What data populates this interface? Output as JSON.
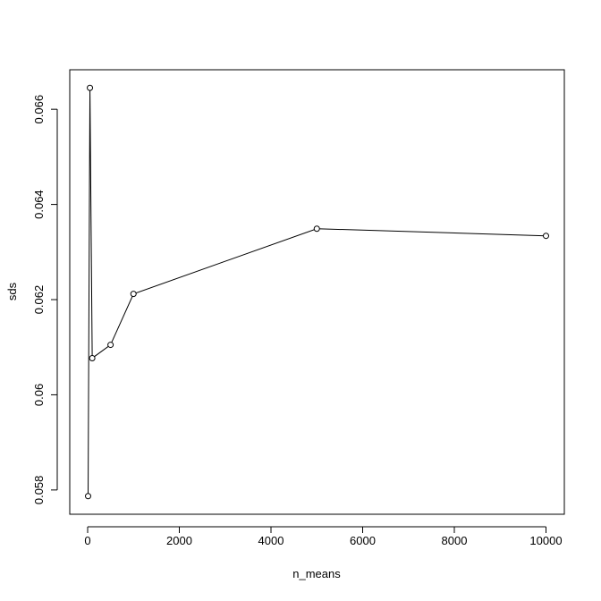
{
  "chart_data": {
    "type": "line",
    "x_label": "n_means",
    "y_label": "sds",
    "x": [
      10,
      50,
      100,
      500,
      1000,
      5000,
      10000
    ],
    "values": [
      0.05787,
      0.06645,
      0.06077,
      0.06105,
      0.06212,
      0.06349,
      0.06334
    ],
    "color": "#000000",
    "markers": "open-circle",
    "xlim": [
      -390,
      10400
    ],
    "ylim": [
      0.05749,
      0.06683
    ],
    "xticks": [
      0,
      2000,
      4000,
      6000,
      8000,
      10000
    ],
    "yticks": [
      0.058,
      0.06,
      0.062,
      0.064,
      0.066
    ]
  }
}
